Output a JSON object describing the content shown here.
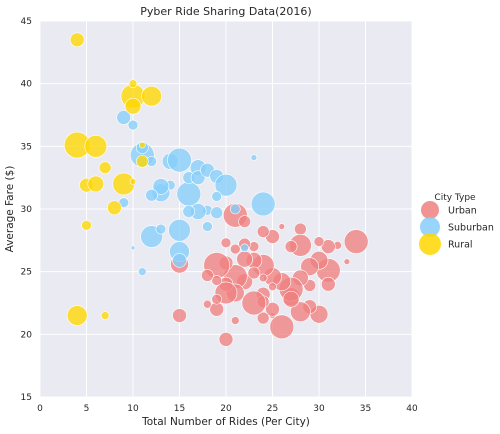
{
  "chart_data": {
    "type": "scatter",
    "title": "Pyber Ride Sharing Data(2016)",
    "xlabel": "Total Number of Rides (Per City)",
    "ylabel": "Average Fare ($)",
    "xlim": [
      0,
      40
    ],
    "ylim": [
      15,
      45
    ],
    "xticks": [
      0,
      5,
      10,
      15,
      20,
      25,
      30,
      35,
      40
    ],
    "yticks": [
      15,
      20,
      25,
      30,
      35,
      40,
      45
    ],
    "grid": true,
    "legend": {
      "title": "City Type",
      "placement": "right"
    },
    "series": [
      {
        "name": "Urban",
        "color": "#F08080",
        "points": [
          {
            "x": 34,
            "y": 27.4,
            "s": 12
          },
          {
            "x": 32,
            "y": 27.1,
            "s": 4
          },
          {
            "x": 31,
            "y": 27.0,
            "s": 7
          },
          {
            "x": 31,
            "y": 25.1,
            "s": 12
          },
          {
            "x": 30,
            "y": 25.9,
            "s": 9
          },
          {
            "x": 30,
            "y": 21.6,
            "s": 9
          },
          {
            "x": 31,
            "y": 24.0,
            "s": 7
          },
          {
            "x": 29,
            "y": 25.4,
            "s": 9
          },
          {
            "x": 29,
            "y": 22.2,
            "s": 7
          },
          {
            "x": 29,
            "y": 23.9,
            "s": 6
          },
          {
            "x": 28,
            "y": 28.4,
            "s": 6
          },
          {
            "x": 28,
            "y": 27.1,
            "s": 11
          },
          {
            "x": 28,
            "y": 24.5,
            "s": 8
          },
          {
            "x": 28,
            "y": 21.8,
            "s": 10
          },
          {
            "x": 27,
            "y": 23.0,
            "s": 9
          },
          {
            "x": 27,
            "y": 23.6,
            "s": 12
          },
          {
            "x": 27,
            "y": 22.8,
            "s": 8
          },
          {
            "x": 27,
            "y": 27.0,
            "s": 6
          },
          {
            "x": 26,
            "y": 20.6,
            "s": 12
          },
          {
            "x": 26,
            "y": 24.2,
            "s": 9
          },
          {
            "x": 25,
            "y": 24.6,
            "s": 9
          },
          {
            "x": 25,
            "y": 21.5,
            "s": 3
          },
          {
            "x": 25,
            "y": 27.8,
            "s": 7
          },
          {
            "x": 25,
            "y": 22.0,
            "s": 7
          },
          {
            "x": 24,
            "y": 28.2,
            "s": 6
          },
          {
            "x": 24,
            "y": 25.5,
            "s": 11
          },
          {
            "x": 24,
            "y": 23.2,
            "s": 7
          },
          {
            "x": 24,
            "y": 21.3,
            "s": 6
          },
          {
            "x": 24,
            "y": 22.6,
            "s": 6
          },
          {
            "x": 23,
            "y": 27.0,
            "s": 5
          },
          {
            "x": 23,
            "y": 25.9,
            "s": 8
          },
          {
            "x": 23,
            "y": 22.5,
            "s": 12
          },
          {
            "x": 22,
            "y": 26.0,
            "s": 8
          },
          {
            "x": 22,
            "y": 24.2,
            "s": 8
          },
          {
            "x": 22,
            "y": 27.2,
            "s": 6
          },
          {
            "x": 21,
            "y": 29.5,
            "s": 12
          },
          {
            "x": 21,
            "y": 24.6,
            "s": 12
          },
          {
            "x": 21,
            "y": 23.3,
            "s": 9
          },
          {
            "x": 21,
            "y": 21.1,
            "s": 4
          },
          {
            "x": 21,
            "y": 26.8,
            "s": 5
          },
          {
            "x": 20,
            "y": 27.3,
            "s": 5
          },
          {
            "x": 20,
            "y": 25.7,
            "s": 7
          },
          {
            "x": 20,
            "y": 24.0,
            "s": 7
          },
          {
            "x": 20,
            "y": 23.3,
            "s": 11
          },
          {
            "x": 20,
            "y": 19.6,
            "s": 7
          },
          {
            "x": 19,
            "y": 25.5,
            "s": 13
          },
          {
            "x": 19,
            "y": 22.0,
            "s": 7
          },
          {
            "x": 19,
            "y": 24.3,
            "s": 5
          },
          {
            "x": 19,
            "y": 22.8,
            "s": 5
          },
          {
            "x": 18,
            "y": 22.4,
            "s": 4
          },
          {
            "x": 15,
            "y": 25.6,
            "s": 9
          },
          {
            "x": 15,
            "y": 21.5,
            "s": 7
          },
          {
            "x": 22,
            "y": 29.0,
            "s": 6
          },
          {
            "x": 26,
            "y": 28.6,
            "s": 3
          },
          {
            "x": 33,
            "y": 25.8,
            "s": 3
          },
          {
            "x": 23,
            "y": 24.9,
            "s": 6
          },
          {
            "x": 24,
            "y": 24.5,
            "s": 4
          },
          {
            "x": 18,
            "y": 24.7,
            "s": 6
          },
          {
            "x": 25,
            "y": 23.8,
            "s": 4
          },
          {
            "x": 30,
            "y": 27.4,
            "s": 5
          }
        ]
      },
      {
        "name": "Suburban",
        "color": "#87CEFA",
        "points": [
          {
            "x": 9,
            "y": 37.3,
            "s": 7
          },
          {
            "x": 10,
            "y": 36.7,
            "s": 5
          },
          {
            "x": 11,
            "y": 34.3,
            "s": 12
          },
          {
            "x": 11,
            "y": 34.9,
            "s": 6
          },
          {
            "x": 12,
            "y": 33.8,
            "s": 5
          },
          {
            "x": 14,
            "y": 33.8,
            "s": 8
          },
          {
            "x": 15,
            "y": 33.9,
            "s": 12
          },
          {
            "x": 16,
            "y": 31.2,
            "s": 12
          },
          {
            "x": 16,
            "y": 32.5,
            "s": 6
          },
          {
            "x": 17,
            "y": 33.3,
            "s": 8
          },
          {
            "x": 17,
            "y": 32.5,
            "s": 7
          },
          {
            "x": 18,
            "y": 33.1,
            "s": 7
          },
          {
            "x": 19,
            "y": 32.6,
            "s": 7
          },
          {
            "x": 20,
            "y": 31.9,
            "s": 11
          },
          {
            "x": 19,
            "y": 31.0,
            "s": 5
          },
          {
            "x": 18,
            "y": 29.9,
            "s": 5
          },
          {
            "x": 19,
            "y": 29.7,
            "s": 6
          },
          {
            "x": 17,
            "y": 29.8,
            "s": 8
          },
          {
            "x": 16,
            "y": 29.8,
            "s": 6
          },
          {
            "x": 14,
            "y": 31.9,
            "s": 5
          },
          {
            "x": 13,
            "y": 31.3,
            "s": 9
          },
          {
            "x": 13,
            "y": 31.8,
            "s": 8
          },
          {
            "x": 12,
            "y": 31.1,
            "s": 6
          },
          {
            "x": 12,
            "y": 27.8,
            "s": 11
          },
          {
            "x": 13,
            "y": 28.4,
            "s": 5
          },
          {
            "x": 15,
            "y": 28.3,
            "s": 11
          },
          {
            "x": 15,
            "y": 26.6,
            "s": 10
          },
          {
            "x": 15,
            "y": 25.9,
            "s": 7
          },
          {
            "x": 21,
            "y": 30.0,
            "s": 5
          },
          {
            "x": 24,
            "y": 30.4,
            "s": 12
          },
          {
            "x": 23,
            "y": 34.1,
            "s": 3
          },
          {
            "x": 10,
            "y": 26.9,
            "s": 2
          },
          {
            "x": 11,
            "y": 25.0,
            "s": 4
          },
          {
            "x": 9,
            "y": 30.5,
            "s": 5
          },
          {
            "x": 18,
            "y": 28.6,
            "s": 5
          },
          {
            "x": 22,
            "y": 26.9,
            "s": 4
          }
        ]
      },
      {
        "name": "Rural",
        "color": "#FFD700",
        "points": [
          {
            "x": 4,
            "y": 43.5,
            "s": 7
          },
          {
            "x": 4,
            "y": 35.1,
            "s": 13
          },
          {
            "x": 6,
            "y": 35.0,
            "s": 11
          },
          {
            "x": 5,
            "y": 31.9,
            "s": 7
          },
          {
            "x": 6,
            "y": 32.0,
            "s": 8
          },
          {
            "x": 7,
            "y": 33.3,
            "s": 6
          },
          {
            "x": 8,
            "y": 30.1,
            "s": 7
          },
          {
            "x": 9,
            "y": 32.0,
            "s": 11
          },
          {
            "x": 10,
            "y": 39.0,
            "s": 12
          },
          {
            "x": 10,
            "y": 38.2,
            "s": 8
          },
          {
            "x": 11,
            "y": 33.8,
            "s": 6
          },
          {
            "x": 12,
            "y": 39.0,
            "s": 10
          },
          {
            "x": 5,
            "y": 28.7,
            "s": 5
          },
          {
            "x": 4,
            "y": 21.5,
            "s": 10
          },
          {
            "x": 7,
            "y": 21.5,
            "s": 4
          },
          {
            "x": 10,
            "y": 32.2,
            "s": 3
          },
          {
            "x": 11,
            "y": 35.1,
            "s": 3
          },
          {
            "x": 10,
            "y": 40.0,
            "s": 4
          }
        ]
      }
    ]
  }
}
